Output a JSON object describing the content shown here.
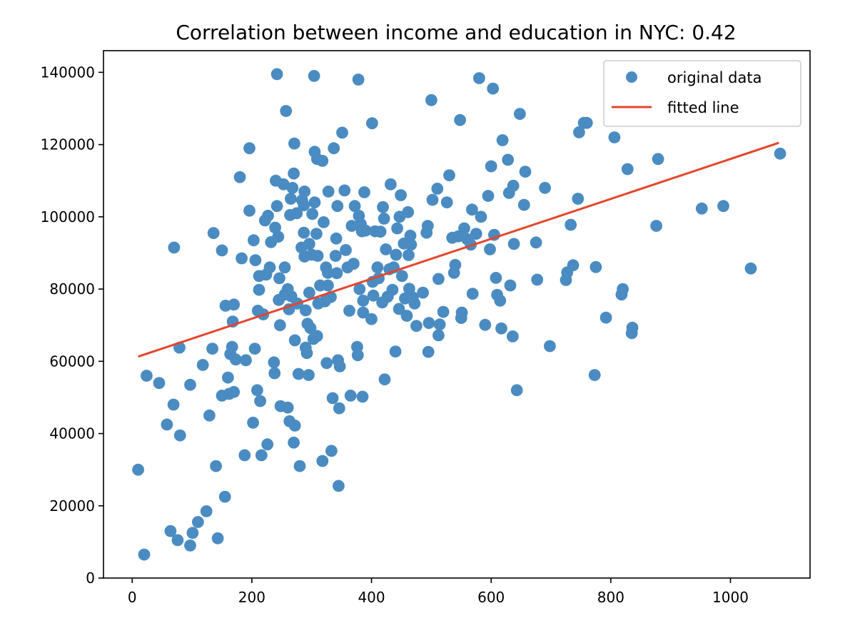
{
  "chart_data": {
    "type": "scatter",
    "title": "Correlation between income and education in NYC: 0.42",
    "xlabel": "",
    "ylabel": "",
    "xlim": [
      -48,
      1133
    ],
    "ylim": [
      0,
      146000
    ],
    "x_ticks": [
      0,
      200,
      400,
      600,
      800,
      1000
    ],
    "y_ticks": [
      0,
      20000,
      40000,
      60000,
      80000,
      100000,
      120000,
      140000
    ],
    "grid": false,
    "legend_position": "top-right",
    "colors": {
      "points": "#4a8cc1",
      "line": "#e5452c"
    },
    "series": [
      {
        "name": "original data",
        "kind": "scatter",
        "points": [
          [
            10,
            30000
          ],
          [
            20,
            6500
          ],
          [
            24,
            56000
          ],
          [
            45,
            54000
          ],
          [
            58,
            42500
          ],
          [
            64,
            13000
          ],
          [
            69,
            48000
          ],
          [
            70,
            91500
          ],
          [
            76,
            10500
          ],
          [
            79,
            63800
          ],
          [
            80,
            39500
          ],
          [
            97,
            53500
          ],
          [
            97,
            9000
          ],
          [
            101,
            12500
          ],
          [
            110,
            15500
          ],
          [
            118,
            59000
          ],
          [
            124,
            18500
          ],
          [
            129,
            45000
          ],
          [
            134,
            63500
          ],
          [
            136,
            95500
          ],
          [
            140,
            31000
          ],
          [
            143,
            11000
          ],
          [
            150,
            50500
          ],
          [
            150,
            90700
          ],
          [
            155,
            22500
          ],
          [
            156,
            75400
          ],
          [
            160,
            55500
          ],
          [
            162,
            51000
          ],
          [
            164,
            62000
          ],
          [
            167,
            64000
          ],
          [
            168,
            71000
          ],
          [
            170,
            51500
          ],
          [
            170,
            75700
          ],
          [
            173,
            60500
          ],
          [
            180,
            111000
          ],
          [
            183,
            88500
          ],
          [
            188,
            34000
          ],
          [
            190,
            60300
          ],
          [
            196,
            119000
          ],
          [
            196,
            101700
          ],
          [
            202,
            43000
          ],
          [
            203,
            93500
          ],
          [
            205,
            63500
          ],
          [
            206,
            88000
          ],
          [
            209,
            52000
          ],
          [
            210,
            74000
          ],
          [
            212,
            79800
          ],
          [
            212,
            83600
          ],
          [
            214,
            49000
          ],
          [
            216,
            34000
          ],
          [
            219,
            73000
          ],
          [
            222,
            99000
          ],
          [
            224,
            84000
          ],
          [
            226,
            37000
          ],
          [
            227,
            100300
          ],
          [
            230,
            86000
          ],
          [
            232,
            93000
          ],
          [
            237,
            59700
          ],
          [
            238,
            56700
          ],
          [
            239,
            97000
          ],
          [
            240,
            110000
          ],
          [
            242,
            139500
          ],
          [
            242,
            103000
          ],
          [
            244,
            94500
          ],
          [
            245,
            77000
          ],
          [
            246,
            83000
          ],
          [
            247,
            70000
          ],
          [
            248,
            47600
          ],
          [
            253,
            109000
          ],
          [
            255,
            86000
          ],
          [
            255,
            78500
          ],
          [
            257,
            129300
          ],
          [
            260,
            80000
          ],
          [
            260,
            47200
          ],
          [
            262,
            74400
          ],
          [
            263,
            43400
          ],
          [
            264,
            100500
          ],
          [
            265,
            105000
          ],
          [
            266,
            78000
          ],
          [
            268,
            108000
          ],
          [
            270,
            37500
          ],
          [
            270,
            112000
          ],
          [
            271,
            120300
          ],
          [
            272,
            42200
          ],
          [
            272,
            65800
          ],
          [
            275,
            101000
          ],
          [
            276,
            76000
          ],
          [
            278,
            56500
          ],
          [
            280,
            31000
          ],
          [
            283,
            91500
          ],
          [
            284,
            104600
          ],
          [
            287,
            95600
          ],
          [
            287,
            103200
          ],
          [
            288,
            107000
          ],
          [
            288,
            89000
          ],
          [
            290,
            63800
          ],
          [
            290,
            74100
          ],
          [
            292,
            62300
          ],
          [
            293,
            70400
          ],
          [
            295,
            56200
          ],
          [
            296,
            92500
          ],
          [
            296,
            79000
          ],
          [
            298,
            69200
          ],
          [
            300,
            89500
          ],
          [
            301,
            100800
          ],
          [
            303,
            66200
          ],
          [
            304,
            139000
          ],
          [
            305,
            104000
          ],
          [
            305,
            118000
          ],
          [
            308,
            95300
          ],
          [
            309,
            116000
          ],
          [
            309,
            67000
          ],
          [
            310,
            89200
          ],
          [
            311,
            76000
          ],
          [
            314,
            81000
          ],
          [
            318,
            115500
          ],
          [
            318,
            32400
          ],
          [
            320,
            98500
          ],
          [
            322,
            76600
          ],
          [
            324,
            86000
          ],
          [
            325,
            59500
          ],
          [
            327,
            81000
          ],
          [
            327,
            84500
          ],
          [
            328,
            107000
          ],
          [
            332,
            77800
          ],
          [
            333,
            35200
          ],
          [
            335,
            49800
          ],
          [
            337,
            119000
          ],
          [
            340,
            89200
          ],
          [
            341,
            94000
          ],
          [
            342,
            84400
          ],
          [
            343,
            103000
          ],
          [
            344,
            60300
          ],
          [
            345,
            25500
          ],
          [
            346,
            47000
          ],
          [
            347,
            58600
          ],
          [
            351,
            123300
          ],
          [
            355,
            107300
          ],
          [
            357,
            90800
          ],
          [
            360,
            86000
          ],
          [
            363,
            74000
          ],
          [
            365,
            50500
          ],
          [
            367,
            97500
          ],
          [
            370,
            87000
          ],
          [
            372,
            103000
          ],
          [
            376,
            64000
          ],
          [
            377,
            61700
          ],
          [
            378,
            138000
          ],
          [
            379,
            100300
          ],
          [
            380,
            80000
          ],
          [
            382,
            98000
          ],
          [
            384,
            96000
          ],
          [
            385,
            50200
          ],
          [
            386,
            73500
          ],
          [
            386,
            76800
          ],
          [
            388,
            106800
          ],
          [
            390,
            96200
          ],
          [
            400,
            71700
          ],
          [
            401,
            125900
          ],
          [
            402,
            82000
          ],
          [
            403,
            78200
          ],
          [
            406,
            96000
          ],
          [
            410,
            86000
          ],
          [
            412,
            83000
          ],
          [
            415,
            95900
          ],
          [
            418,
            76300
          ],
          [
            419,
            102700
          ],
          [
            421,
            99500
          ],
          [
            422,
            55000
          ],
          [
            424,
            91000
          ],
          [
            427,
            77900
          ],
          [
            430,
            85500
          ],
          [
            432,
            109000
          ],
          [
            435,
            79800
          ],
          [
            437,
            86000
          ],
          [
            440,
            62700
          ],
          [
            441,
            89500
          ],
          [
            443,
            96800
          ],
          [
            446,
            74500
          ],
          [
            447,
            100000
          ],
          [
            449,
            106000
          ],
          [
            451,
            83600
          ],
          [
            454,
            92600
          ],
          [
            456,
            77400
          ],
          [
            459,
            72600
          ],
          [
            461,
            101300
          ],
          [
            462,
            89400
          ],
          [
            463,
            80100
          ],
          [
            465,
            94800
          ],
          [
            466,
            92300
          ],
          [
            469,
            77700
          ],
          [
            472,
            76000
          ],
          [
            475,
            69800
          ],
          [
            486,
            79000
          ],
          [
            492,
            95600
          ],
          [
            494,
            97500
          ],
          [
            495,
            62600
          ],
          [
            496,
            70600
          ],
          [
            500,
            132300
          ],
          [
            502,
            104700
          ],
          [
            510,
            107800
          ],
          [
            512,
            82800
          ],
          [
            512,
            67200
          ],
          [
            514,
            70200
          ],
          [
            520,
            73700
          ],
          [
            526,
            104000
          ],
          [
            530,
            111500
          ],
          [
            535,
            94200
          ],
          [
            538,
            84500
          ],
          [
            540,
            86700
          ],
          [
            545,
            94600
          ],
          [
            548,
            126800
          ],
          [
            550,
            72000
          ],
          [
            551,
            73500
          ],
          [
            555,
            96800
          ],
          [
            560,
            93800
          ],
          [
            566,
            92300
          ],
          [
            568,
            102000
          ],
          [
            569,
            78700
          ],
          [
            575,
            95300
          ],
          [
            580,
            138400
          ],
          [
            583,
            100000
          ],
          [
            590,
            70100
          ],
          [
            595,
            105800
          ],
          [
            598,
            91000
          ],
          [
            600,
            114000
          ],
          [
            603,
            135500
          ],
          [
            605,
            95000
          ],
          [
            608,
            83100
          ],
          [
            610,
            78400
          ],
          [
            615,
            76800
          ],
          [
            617,
            69100
          ],
          [
            619,
            121200
          ],
          [
            628,
            115800
          ],
          [
            630,
            106600
          ],
          [
            632,
            81000
          ],
          [
            636,
            66900
          ],
          [
            637,
            108600
          ],
          [
            638,
            92500
          ],
          [
            643,
            52000
          ],
          [
            648,
            128500
          ],
          [
            655,
            103300
          ],
          [
            657,
            112500
          ],
          [
            675,
            92900
          ],
          [
            677,
            82600
          ],
          [
            690,
            108000
          ],
          [
            698,
            64200
          ],
          [
            725,
            82500
          ],
          [
            727,
            84600
          ],
          [
            733,
            97800
          ],
          [
            737,
            86600
          ],
          [
            745,
            105000
          ],
          [
            747,
            123400
          ],
          [
            755,
            126000
          ],
          [
            760,
            126000
          ],
          [
            773,
            56200
          ],
          [
            775,
            86100
          ],
          [
            792,
            72100
          ],
          [
            806,
            122000
          ],
          [
            818,
            78500
          ],
          [
            820,
            80000
          ],
          [
            828,
            113200
          ],
          [
            835,
            67800
          ],
          [
            836,
            69300
          ],
          [
            876,
            97500
          ],
          [
            879,
            116000
          ],
          [
            952,
            102300
          ],
          [
            988,
            103000
          ],
          [
            1034,
            85700
          ],
          [
            1083,
            117500
          ]
        ]
      },
      {
        "name": "fitted line",
        "kind": "line",
        "points": [
          [
            10,
            61300
          ],
          [
            1081,
            120500
          ]
        ]
      }
    ]
  }
}
